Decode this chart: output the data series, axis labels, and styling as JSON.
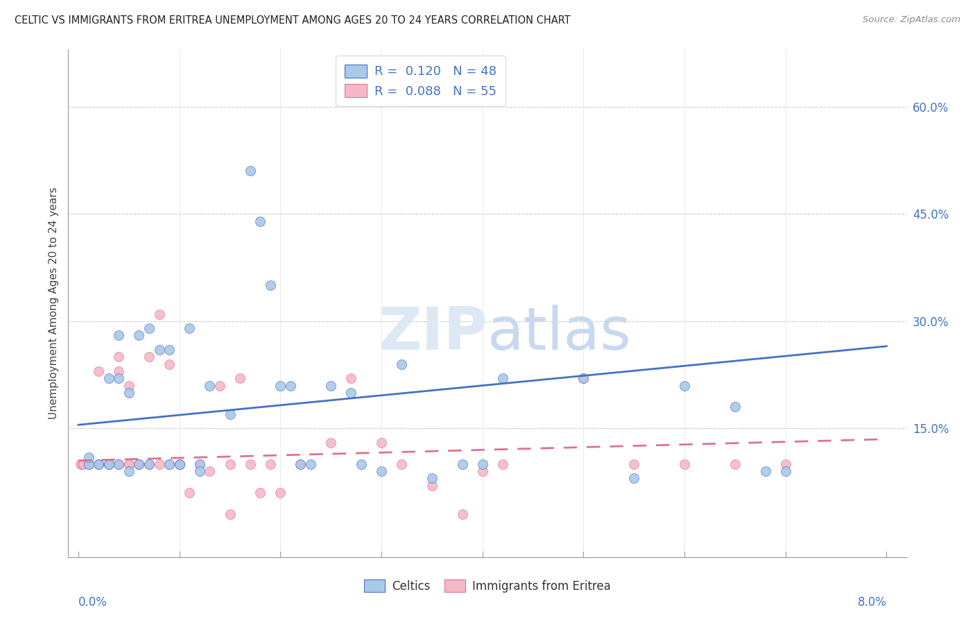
{
  "title": "CELTIC VS IMMIGRANTS FROM ERITREA UNEMPLOYMENT AMONG AGES 20 TO 24 YEARS CORRELATION CHART",
  "source": "Source: ZipAtlas.com",
  "ylabel": "Unemployment Among Ages 20 to 24 years",
  "celtics_R": 0.12,
  "celtics_N": 48,
  "eritrea_R": 0.088,
  "eritrea_N": 55,
  "celtics_color": "#aac8e8",
  "eritrea_color": "#f5b8c8",
  "celtics_line_color": "#4472c4",
  "eritrea_line_color": "#e07090",
  "celtics_x": [
    0.001,
    0.001,
    0.002,
    0.002,
    0.003,
    0.003,
    0.003,
    0.004,
    0.004,
    0.004,
    0.005,
    0.005,
    0.006,
    0.006,
    0.007,
    0.007,
    0.008,
    0.009,
    0.009,
    0.01,
    0.01,
    0.011,
    0.012,
    0.012,
    0.013,
    0.015,
    0.017,
    0.018,
    0.019,
    0.02,
    0.021,
    0.022,
    0.023,
    0.025,
    0.027,
    0.028,
    0.03,
    0.032,
    0.035,
    0.038,
    0.04,
    0.042,
    0.05,
    0.055,
    0.06,
    0.065,
    0.068,
    0.07
  ],
  "celtics_y": [
    0.1,
    0.11,
    0.1,
    0.1,
    0.22,
    0.1,
    0.1,
    0.22,
    0.28,
    0.1,
    0.2,
    0.09,
    0.1,
    0.28,
    0.29,
    0.1,
    0.26,
    0.1,
    0.26,
    0.1,
    0.1,
    0.29,
    0.1,
    0.09,
    0.21,
    0.17,
    0.51,
    0.44,
    0.35,
    0.21,
    0.21,
    0.1,
    0.1,
    0.21,
    0.2,
    0.1,
    0.09,
    0.24,
    0.08,
    0.1,
    0.1,
    0.22,
    0.22,
    0.08,
    0.21,
    0.18,
    0.09,
    0.09
  ],
  "eritrea_x": [
    0.0002,
    0.0004,
    0.0005,
    0.001,
    0.001,
    0.001,
    0.002,
    0.002,
    0.002,
    0.003,
    0.003,
    0.003,
    0.004,
    0.004,
    0.004,
    0.004,
    0.005,
    0.005,
    0.005,
    0.006,
    0.006,
    0.006,
    0.007,
    0.007,
    0.008,
    0.008,
    0.009,
    0.009,
    0.01,
    0.01,
    0.011,
    0.012,
    0.013,
    0.014,
    0.015,
    0.015,
    0.016,
    0.017,
    0.018,
    0.019,
    0.02,
    0.022,
    0.025,
    0.027,
    0.03,
    0.032,
    0.035,
    0.038,
    0.04,
    0.042,
    0.05,
    0.055,
    0.06,
    0.065,
    0.07
  ],
  "eritrea_y": [
    0.1,
    0.1,
    0.1,
    0.1,
    0.1,
    0.1,
    0.1,
    0.1,
    0.23,
    0.1,
    0.1,
    0.1,
    0.23,
    0.25,
    0.1,
    0.1,
    0.21,
    0.1,
    0.1,
    0.1,
    0.1,
    0.1,
    0.25,
    0.1,
    0.1,
    0.31,
    0.24,
    0.1,
    0.1,
    0.1,
    0.06,
    0.1,
    0.09,
    0.21,
    0.1,
    0.03,
    0.22,
    0.1,
    0.06,
    0.1,
    0.06,
    0.1,
    0.13,
    0.22,
    0.13,
    0.1,
    0.07,
    0.03,
    0.09,
    0.1,
    0.22,
    0.1,
    0.1,
    0.1,
    0.1
  ],
  "yticks_right": [
    0.15,
    0.3,
    0.45,
    0.6
  ],
  "ytick_labels_right": [
    "15.0%",
    "30.0%",
    "45.0%",
    "60.0%"
  ],
  "grid_color": "#cccccc",
  "background_color": "#ffffff",
  "watermark_zip": "ZIP",
  "watermark_atlas": "atlas",
  "watermark_color": "#dde8f5",
  "celtics_trend_x": [
    0.0,
    0.08
  ],
  "celtics_trend_y": [
    0.155,
    0.265
  ],
  "eritrea_trend_x": [
    0.0,
    0.08
  ],
  "eritrea_trend_y": [
    0.105,
    0.135
  ],
  "xlim": [
    -0.001,
    0.082
  ],
  "ylim": [
    -0.03,
    0.68
  ]
}
